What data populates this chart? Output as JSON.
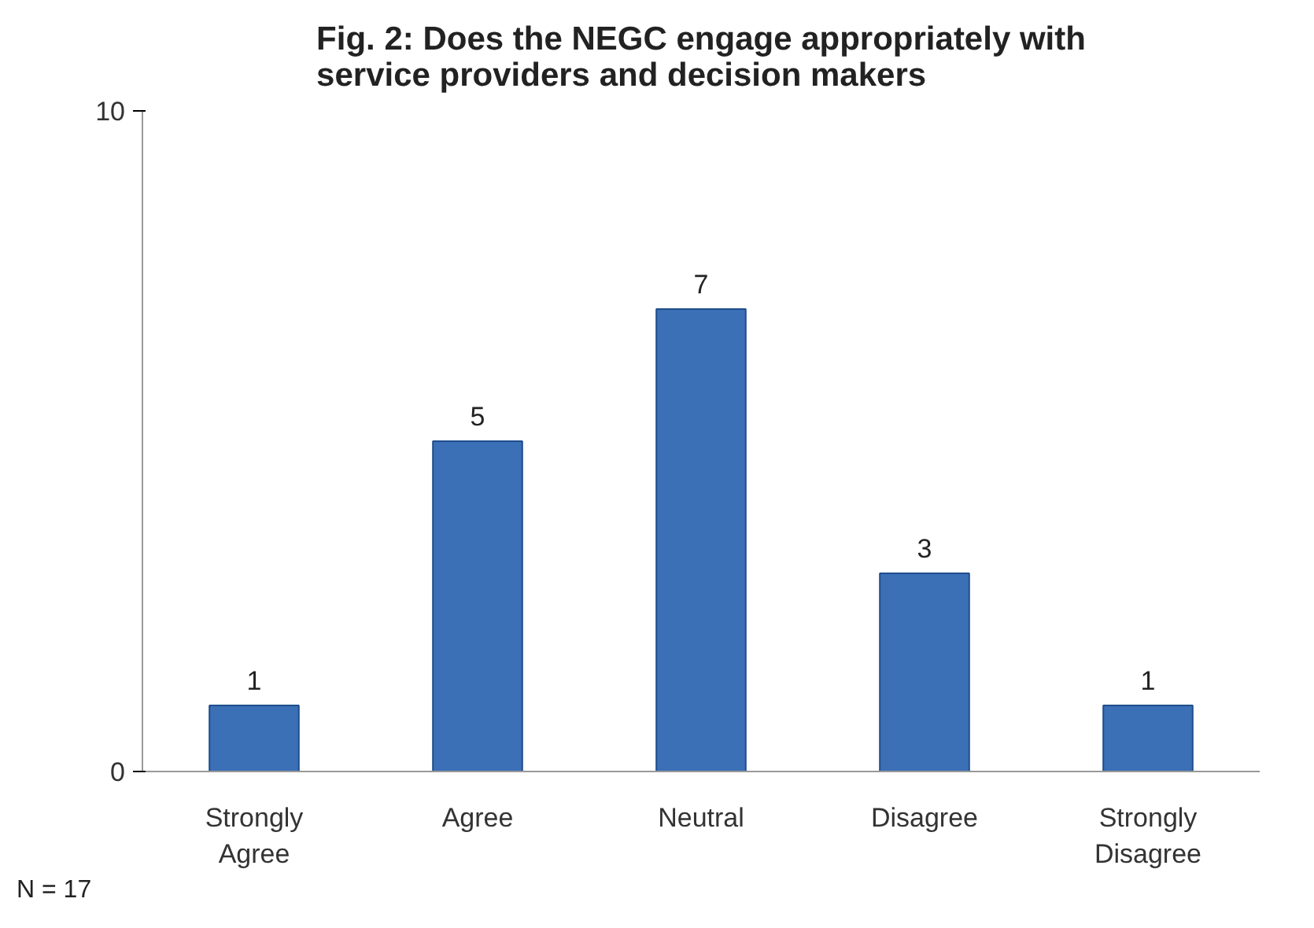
{
  "chart_data": {
    "type": "bar",
    "title": "Fig. 2: Does the NEGC engage appropriately with service providers and decision makers",
    "categories": [
      "Strongly Agree",
      "Agree",
      "Neutral",
      "Disagree",
      "Strongly Disagree"
    ],
    "values": [
      1,
      5,
      7,
      3,
      1
    ],
    "color": "#3b6fb6",
    "ylim": [
      0,
      10
    ],
    "yticks": [
      0,
      10
    ],
    "data_labels": true,
    "annotations": [
      "N = 17"
    ]
  }
}
